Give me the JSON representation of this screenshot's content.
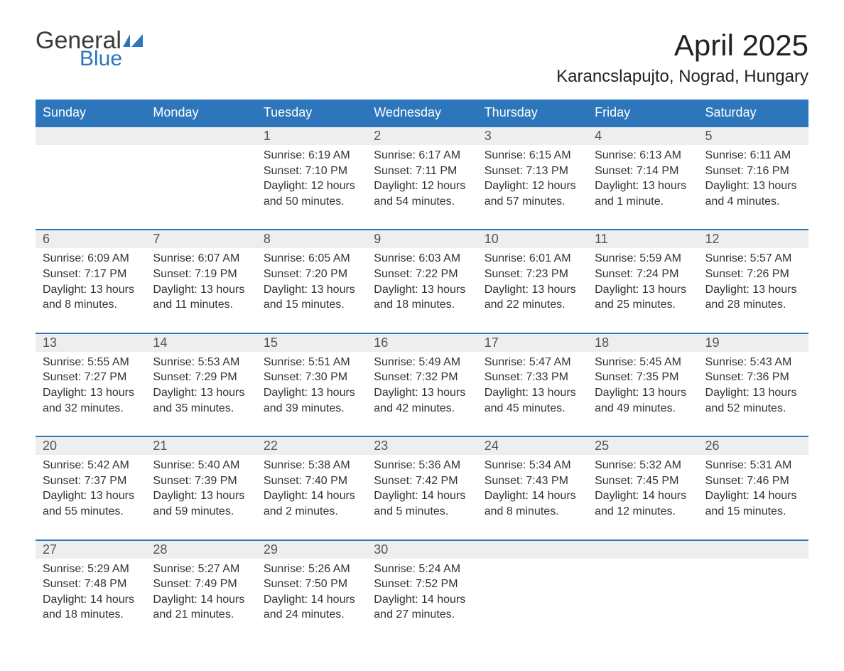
{
  "logo": {
    "text_general": "General",
    "text_blue": "Blue",
    "flag_color": "#2d76bb"
  },
  "title": "April 2025",
  "location": "Karancslapujto, Nograd, Hungary",
  "colors": {
    "header_bg": "#2d76bb",
    "header_fg": "#ffffff",
    "daynum_bg": "#eeeeee",
    "row_divider": "#2d76bb",
    "text": "#333333"
  },
  "day_headers": [
    "Sunday",
    "Monday",
    "Tuesday",
    "Wednesday",
    "Thursday",
    "Friday",
    "Saturday"
  ],
  "weeks": [
    [
      null,
      null,
      {
        "n": "1",
        "sunrise": "6:19 AM",
        "sunset": "7:10 PM",
        "dl": "12 hours and 50 minutes."
      },
      {
        "n": "2",
        "sunrise": "6:17 AM",
        "sunset": "7:11 PM",
        "dl": "12 hours and 54 minutes."
      },
      {
        "n": "3",
        "sunrise": "6:15 AM",
        "sunset": "7:13 PM",
        "dl": "12 hours and 57 minutes."
      },
      {
        "n": "4",
        "sunrise": "6:13 AM",
        "sunset": "7:14 PM",
        "dl": "13 hours and 1 minute."
      },
      {
        "n": "5",
        "sunrise": "6:11 AM",
        "sunset": "7:16 PM",
        "dl": "13 hours and 4 minutes."
      }
    ],
    [
      {
        "n": "6",
        "sunrise": "6:09 AM",
        "sunset": "7:17 PM",
        "dl": "13 hours and 8 minutes."
      },
      {
        "n": "7",
        "sunrise": "6:07 AM",
        "sunset": "7:19 PM",
        "dl": "13 hours and 11 minutes."
      },
      {
        "n": "8",
        "sunrise": "6:05 AM",
        "sunset": "7:20 PM",
        "dl": "13 hours and 15 minutes."
      },
      {
        "n": "9",
        "sunrise": "6:03 AM",
        "sunset": "7:22 PM",
        "dl": "13 hours and 18 minutes."
      },
      {
        "n": "10",
        "sunrise": "6:01 AM",
        "sunset": "7:23 PM",
        "dl": "13 hours and 22 minutes."
      },
      {
        "n": "11",
        "sunrise": "5:59 AM",
        "sunset": "7:24 PM",
        "dl": "13 hours and 25 minutes."
      },
      {
        "n": "12",
        "sunrise": "5:57 AM",
        "sunset": "7:26 PM",
        "dl": "13 hours and 28 minutes."
      }
    ],
    [
      {
        "n": "13",
        "sunrise": "5:55 AM",
        "sunset": "7:27 PM",
        "dl": "13 hours and 32 minutes."
      },
      {
        "n": "14",
        "sunrise": "5:53 AM",
        "sunset": "7:29 PM",
        "dl": "13 hours and 35 minutes."
      },
      {
        "n": "15",
        "sunrise": "5:51 AM",
        "sunset": "7:30 PM",
        "dl": "13 hours and 39 minutes."
      },
      {
        "n": "16",
        "sunrise": "5:49 AM",
        "sunset": "7:32 PM",
        "dl": "13 hours and 42 minutes."
      },
      {
        "n": "17",
        "sunrise": "5:47 AM",
        "sunset": "7:33 PM",
        "dl": "13 hours and 45 minutes."
      },
      {
        "n": "18",
        "sunrise": "5:45 AM",
        "sunset": "7:35 PM",
        "dl": "13 hours and 49 minutes."
      },
      {
        "n": "19",
        "sunrise": "5:43 AM",
        "sunset": "7:36 PM",
        "dl": "13 hours and 52 minutes."
      }
    ],
    [
      {
        "n": "20",
        "sunrise": "5:42 AM",
        "sunset": "7:37 PM",
        "dl": "13 hours and 55 minutes."
      },
      {
        "n": "21",
        "sunrise": "5:40 AM",
        "sunset": "7:39 PM",
        "dl": "13 hours and 59 minutes."
      },
      {
        "n": "22",
        "sunrise": "5:38 AM",
        "sunset": "7:40 PM",
        "dl": "14 hours and 2 minutes."
      },
      {
        "n": "23",
        "sunrise": "5:36 AM",
        "sunset": "7:42 PM",
        "dl": "14 hours and 5 minutes."
      },
      {
        "n": "24",
        "sunrise": "5:34 AM",
        "sunset": "7:43 PM",
        "dl": "14 hours and 8 minutes."
      },
      {
        "n": "25",
        "sunrise": "5:32 AM",
        "sunset": "7:45 PM",
        "dl": "14 hours and 12 minutes."
      },
      {
        "n": "26",
        "sunrise": "5:31 AM",
        "sunset": "7:46 PM",
        "dl": "14 hours and 15 minutes."
      }
    ],
    [
      {
        "n": "27",
        "sunrise": "5:29 AM",
        "sunset": "7:48 PM",
        "dl": "14 hours and 18 minutes."
      },
      {
        "n": "28",
        "sunrise": "5:27 AM",
        "sunset": "7:49 PM",
        "dl": "14 hours and 21 minutes."
      },
      {
        "n": "29",
        "sunrise": "5:26 AM",
        "sunset": "7:50 PM",
        "dl": "14 hours and 24 minutes."
      },
      {
        "n": "30",
        "sunrise": "5:24 AM",
        "sunset": "7:52 PM",
        "dl": "14 hours and 27 minutes."
      },
      null,
      null,
      null
    ]
  ],
  "labels": {
    "sunrise": "Sunrise: ",
    "sunset": "Sunset: ",
    "daylight": "Daylight: "
  }
}
